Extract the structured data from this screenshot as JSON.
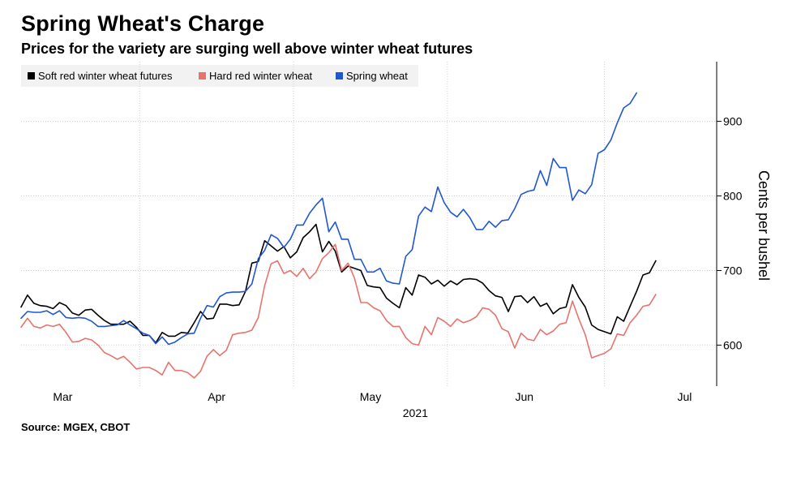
{
  "header": {
    "title": "Spring Wheat's Charge",
    "subtitle": "Prices for the variety are surging well above winter wheat futures"
  },
  "footer": {
    "source": "Source: MGEX, CBOT"
  },
  "chart_data": {
    "type": "line",
    "title": "Spring Wheat's Charge",
    "subtitle": "Prices for the variety are surging well above winter wheat futures",
    "xlabel": "2021",
    "ylabel": "Cents per bushel",
    "x_tick_labels": [
      "Mar",
      "Apr",
      "May",
      "Jun",
      "Jul"
    ],
    "x_tick_positions": [
      6.5,
      30.5,
      54.5,
      78.5,
      103.5
    ],
    "y_ticks": [
      600,
      700,
      800,
      900
    ],
    "ylim": [
      545,
      980
    ],
    "xlim": [
      0,
      108.5
    ],
    "grid": true,
    "legend_position": "top-left",
    "x_index_note": "x = trading-day index (0 = first point)",
    "series": [
      {
        "name": "Soft red winter wheat futures",
        "color": "#000000",
        "values": [
          651,
          667,
          656,
          653,
          652,
          649,
          657,
          653,
          643,
          640,
          647,
          648,
          640,
          633,
          628,
          628,
          628,
          632,
          624,
          613,
          613,
          603,
          617,
          612,
          612,
          617,
          616,
          630,
          645,
          635,
          636,
          655,
          655,
          653,
          654,
          672,
          710,
          712,
          740,
          733,
          726,
          732,
          717,
          725,
          744,
          752,
          762,
          725,
          739,
          726,
          698,
          706,
          703,
          700,
          680,
          678,
          677,
          663,
          656,
          650,
          677,
          667,
          694,
          691,
          682,
          687,
          679,
          686,
          681,
          688,
          689,
          688,
          683,
          673,
          666,
          664,
          645,
          665,
          666,
          657,
          665,
          652,
          656,
          642,
          649,
          651,
          681,
          664,
          651,
          627,
          621,
          618,
          615,
          638,
          632,
          652,
          672,
          694,
          697,
          713
        ]
      },
      {
        "name": "Hard red winter wheat",
        "color": "#e8736c",
        "values": [
          624,
          636,
          625,
          623,
          627,
          625,
          628,
          617,
          604,
          605,
          609,
          607,
          600,
          590,
          586,
          581,
          585,
          577,
          568,
          570,
          570,
          566,
          560,
          577,
          566,
          566,
          563,
          556,
          565,
          585,
          594,
          586,
          593,
          614,
          616,
          617,
          620,
          637,
          680,
          709,
          713,
          696,
          700,
          692,
          703,
          689,
          698,
          716,
          724,
          735,
          700,
          710,
          690,
          657,
          657,
          650,
          646,
          633,
          625,
          625,
          610,
          602,
          600,
          625,
          614,
          637,
          632,
          625,
          635,
          630,
          633,
          638,
          650,
          648,
          640,
          622,
          618,
          596,
          616,
          608,
          606,
          621,
          614,
          619,
          628,
          630,
          659,
          635,
          614,
          583,
          586,
          589,
          595,
          615,
          613,
          630,
          640,
          652,
          654,
          668
        ]
      },
      {
        "name": "Spring wheat",
        "color": "#1f57d1",
        "values": [
          636,
          645,
          644,
          644,
          646,
          641,
          646,
          637,
          636,
          637,
          636,
          632,
          625,
          625,
          626,
          627,
          633,
          627,
          622,
          616,
          613,
          602,
          611,
          601,
          604,
          610,
          615,
          616,
          636,
          653,
          651,
          665,
          670,
          671,
          671,
          672,
          682,
          716,
          727,
          748,
          743,
          731,
          742,
          761,
          761,
          777,
          788,
          797,
          752,
          765,
          742,
          742,
          715,
          715,
          698,
          698,
          703,
          686,
          683,
          682,
          719,
          728,
          773,
          785,
          779,
          812,
          791,
          778,
          772,
          782,
          771,
          755,
          755,
          766,
          758,
          767,
          768,
          783,
          802,
          806,
          808,
          834,
          814,
          850,
          838,
          838,
          794,
          808,
          803,
          815,
          857,
          862,
          875,
          898,
          918,
          924,
          938
        ]
      }
    ]
  }
}
